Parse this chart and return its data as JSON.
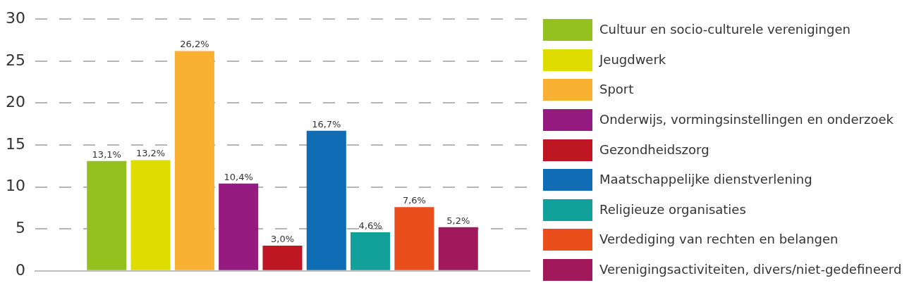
{
  "chart_data": {
    "type": "bar",
    "categories": [
      null
    ],
    "series": [
      {
        "name": "Cultuur en socio-culturele verenigingen",
        "color": "#95c11f",
        "values": [
          13.1
        ],
        "value_labels": [
          "13,1%"
        ]
      },
      {
        "name": "Jeugdwerk",
        "color": "#dedc00",
        "values": [
          13.2
        ],
        "value_labels": [
          "13,2%"
        ]
      },
      {
        "name": "Sport",
        "color": "#f8b133",
        "values": [
          26.2
        ],
        "value_labels": [
          "26,2%"
        ]
      },
      {
        "name": "Onderwijs, vormingsinstellingen en onderzoek",
        "color": "#951b81",
        "values": [
          10.4
        ],
        "value_labels": [
          "10,4%"
        ]
      },
      {
        "name": "Gezondheidszorg",
        "color": "#be1622",
        "values": [
          3.0
        ],
        "value_labels": [
          "3,0%"
        ]
      },
      {
        "name": "Maatschappelijke dienstverlening",
        "color": "#0f6db6",
        "values": [
          16.7
        ],
        "value_labels": [
          "16,7%"
        ]
      },
      {
        "name": "Religieuze organisaties",
        "color": "#11a09a",
        "values": [
          4.6
        ],
        "value_labels": [
          "4,6%"
        ]
      },
      {
        "name": "Verdediging van rechten en belangen",
        "color": "#e94e1b",
        "values": [
          7.6
        ],
        "value_labels": [
          "7,6%"
        ]
      },
      {
        "name": "Verenigingsactiviteiten, divers/niet-gedefineerd",
        "color": "#a2195b",
        "values": [
          5.2
        ],
        "value_labels": [
          "5,2%"
        ]
      }
    ],
    "ylim": [
      0,
      30
    ],
    "yticks": [
      0,
      5,
      10,
      15,
      20,
      25,
      30
    ],
    "grid": "y",
    "legend": "right",
    "tick_labels": "y"
  }
}
